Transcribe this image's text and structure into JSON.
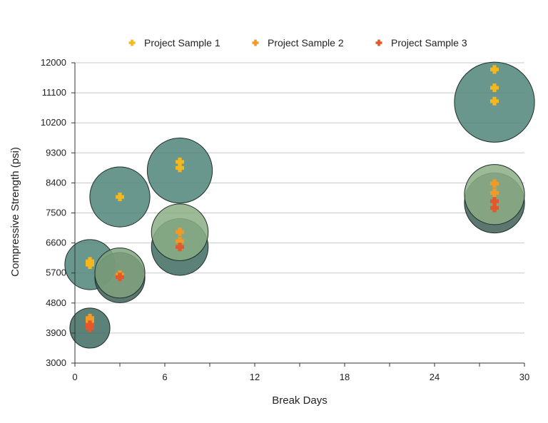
{
  "chart_data": {
    "type": "scatter",
    "xlabel": "Break Days",
    "ylabel": "Compressive Strength (psi)",
    "xlim": [
      0,
      30
    ],
    "ylim": [
      3000,
      12000
    ],
    "x_ticks": [
      0,
      6,
      12,
      18,
      24,
      30
    ],
    "y_ticks": [
      3000,
      3900,
      4800,
      5700,
      6600,
      7500,
      8400,
      9300,
      10200,
      11100,
      12000
    ],
    "grid": "horizontal",
    "legend_position": "top",
    "series": [
      {
        "name": "Project Sample 1",
        "color": "#f5b81c",
        "points": [
          {
            "x": 1,
            "y": 5950
          },
          {
            "x": 1,
            "y": 6050
          },
          {
            "x": 3,
            "y": 7980
          },
          {
            "x": 7,
            "y": 8850
          },
          {
            "x": 7,
            "y": 9030
          },
          {
            "x": 28,
            "y": 10850
          },
          {
            "x": 28,
            "y": 11250
          },
          {
            "x": 28,
            "y": 11800
          }
        ]
      },
      {
        "name": "Project Sample 2",
        "color": "#f29a26",
        "points": [
          {
            "x": 1,
            "y": 4250
          },
          {
            "x": 1,
            "y": 4350
          },
          {
            "x": 3,
            "y": 5650
          },
          {
            "x": 7,
            "y": 6650
          },
          {
            "x": 7,
            "y": 6930
          },
          {
            "x": 28,
            "y": 8100
          },
          {
            "x": 28,
            "y": 8380
          }
        ]
      },
      {
        "name": "Project Sample 3",
        "color": "#e4572a",
        "points": [
          {
            "x": 1,
            "y": 4050
          },
          {
            "x": 1,
            "y": 4150
          },
          {
            "x": 3,
            "y": 5580
          },
          {
            "x": 7,
            "y": 6480
          },
          {
            "x": 28,
            "y": 7650
          },
          {
            "x": 28,
            "y": 7850
          }
        ]
      }
    ],
    "bubbles": [
      {
        "x": 1,
        "y": 4050,
        "size": 1200,
        "color": "#3e6b62"
      },
      {
        "x": 1,
        "y": 5950,
        "size": 1500,
        "color": "#4f857a"
      },
      {
        "x": 3,
        "y": 5560,
        "size": 1500,
        "color": "#3f5e57"
      },
      {
        "x": 3,
        "y": 5700,
        "size": 1500,
        "color": "#7fa37e"
      },
      {
        "x": 3,
        "y": 7980,
        "size": 1800,
        "color": "#4f857a"
      },
      {
        "x": 7,
        "y": 6480,
        "size": 1700,
        "color": "#3e6b62"
      },
      {
        "x": 7,
        "y": 6920,
        "size": 1700,
        "color": "#8cae85"
      },
      {
        "x": 7,
        "y": 8770,
        "size": 1950,
        "color": "#4f857a"
      },
      {
        "x": 28,
        "y": 7800,
        "size": 1800,
        "color": "#3f5e57"
      },
      {
        "x": 28,
        "y": 8050,
        "size": 1800,
        "color": "#8cae85"
      },
      {
        "x": 28,
        "y": 10820,
        "size": 2400,
        "color": "#4f857a"
      }
    ]
  }
}
